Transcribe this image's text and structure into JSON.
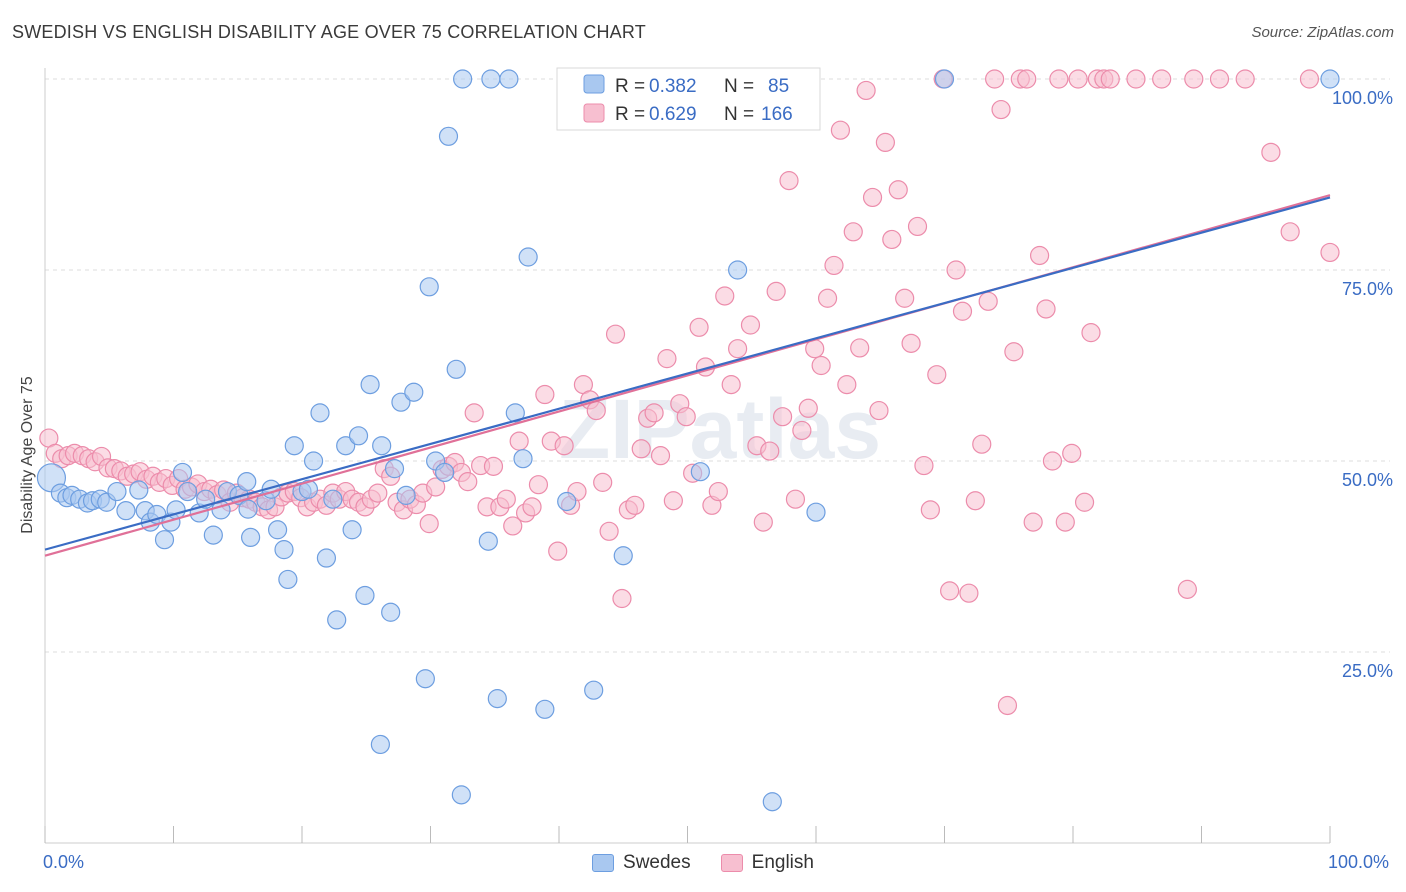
{
  "title": "SWEDISH VS ENGLISH DISABILITY AGE OVER 75 CORRELATION CHART",
  "source": "Source: ZipAtlas.com",
  "watermark": "ZIPatlas",
  "colors": {
    "swedes_fill": "#a9c8f0",
    "swedes_stroke": "#6d9ee0",
    "swedes_line": "#3a6cc4",
    "english_fill": "#f7bfd0",
    "english_stroke": "#ec8cab",
    "english_line": "#e07098",
    "axis_text": "#3a6cc4",
    "grid": "#dddddd"
  },
  "legend": {
    "rows": [
      {
        "r_label": "R =",
        "r_value": "0.382",
        "n_label": "N =",
        "n_value": "85"
      },
      {
        "r_label": "R =",
        "r_value": "0.629",
        "n_label": "N =",
        "n_value": "166"
      }
    ]
  },
  "bottom_legend": [
    "Swedes",
    "English"
  ],
  "chart_data": {
    "type": "scatter",
    "title": "SWEDISH VS ENGLISH DISABILITY AGE OVER 75 CORRELATION CHART",
    "xlabel": "",
    "ylabel": "Disability Age Over 75",
    "xlim": [
      0,
      100
    ],
    "ylim": [
      0,
      100
    ],
    "x_tick_labels": [
      "0.0%",
      "100.0%"
    ],
    "y_tick_labels": [
      "100.0%",
      "75.0%",
      "50.0%",
      "25.0%"
    ],
    "y_ticks": [
      100,
      75,
      50,
      25
    ],
    "grid": true,
    "legend_position": "top-center",
    "series": [
      {
        "name": "Swedes",
        "r": 0.382,
        "n": 85,
        "trend": [
          [
            0,
            38.4
          ],
          [
            100,
            84.5
          ]
        ],
        "points": [
          [
            0.5,
            47.8
          ],
          [
            1.2,
            45.8
          ],
          [
            1.7,
            45.2
          ],
          [
            2.1,
            45.5
          ],
          [
            2.7,
            45.0
          ],
          [
            3.3,
            44.5
          ],
          [
            3.7,
            44.8
          ],
          [
            4.3,
            45.0
          ],
          [
            4.8,
            44.6
          ],
          [
            5.6,
            46.0
          ],
          [
            6.3,
            43.5
          ],
          [
            7.3,
            46.2
          ],
          [
            7.8,
            43.5
          ],
          [
            8.2,
            42.0
          ],
          [
            8.7,
            43.0
          ],
          [
            9.3,
            39.7
          ],
          [
            9.8,
            42.0
          ],
          [
            10.2,
            43.6
          ],
          [
            10.7,
            48.5
          ],
          [
            11.1,
            46.0
          ],
          [
            12.0,
            43.2
          ],
          [
            12.5,
            45.0
          ],
          [
            13.1,
            40.3
          ],
          [
            13.7,
            43.6
          ],
          [
            14.2,
            46.0
          ],
          [
            15.1,
            45.5
          ],
          [
            15.7,
            47.3
          ],
          [
            15.8,
            43.7
          ],
          [
            16.0,
            40.0
          ],
          [
            17.2,
            44.8
          ],
          [
            17.6,
            46.3
          ],
          [
            18.1,
            41.0
          ],
          [
            18.6,
            38.4
          ],
          [
            18.9,
            34.5
          ],
          [
            19.4,
            52.0
          ],
          [
            20.0,
            46.0
          ],
          [
            20.5,
            46.3
          ],
          [
            20.9,
            50.0
          ],
          [
            21.4,
            56.3
          ],
          [
            21.9,
            37.3
          ],
          [
            22.4,
            45.0
          ],
          [
            22.7,
            29.2
          ],
          [
            23.4,
            52.0
          ],
          [
            23.9,
            41.0
          ],
          [
            24.4,
            53.3
          ],
          [
            24.9,
            32.4
          ],
          [
            25.3,
            60.0
          ],
          [
            26.1,
            12.9
          ],
          [
            26.2,
            52.0
          ],
          [
            26.9,
            30.2
          ],
          [
            27.2,
            49.0
          ],
          [
            27.7,
            57.7
          ],
          [
            28.1,
            45.5
          ],
          [
            28.7,
            59.0
          ],
          [
            29.6,
            21.5
          ],
          [
            29.9,
            72.8
          ],
          [
            30.4,
            50.0
          ],
          [
            31.1,
            48.5
          ],
          [
            31.4,
            92.5
          ],
          [
            32.0,
            62.0
          ],
          [
            32.4,
            6.3
          ],
          [
            32.5,
            100
          ],
          [
            34.5,
            39.5
          ],
          [
            34.7,
            100
          ],
          [
            35.2,
            18.9
          ],
          [
            36.1,
            100
          ],
          [
            36.6,
            56.3
          ],
          [
            37.2,
            50.3
          ],
          [
            37.6,
            76.7
          ],
          [
            38.9,
            17.5
          ],
          [
            40.6,
            44.7
          ],
          [
            42.7,
            20.0
          ],
          [
            45.0,
            37.6
          ],
          [
            51.0,
            48.6
          ],
          [
            53.5,
            100
          ],
          [
            53.9,
            75.0
          ],
          [
            56.6,
            5.4
          ],
          [
            60.0,
            43.3
          ],
          [
            70.0,
            100
          ],
          [
            100.0,
            100
          ]
        ]
      },
      {
        "name": "English",
        "r": 0.629,
        "n": 166,
        "trend": [
          [
            0,
            37.6
          ],
          [
            100,
            84.8
          ]
        ],
        "points": [
          [
            0.3,
            53.0
          ],
          [
            0.8,
            51.0
          ],
          [
            1.3,
            50.3
          ],
          [
            1.8,
            50.7
          ],
          [
            2.3,
            51.0
          ],
          [
            2.9,
            50.7
          ],
          [
            3.4,
            50.3
          ],
          [
            3.9,
            49.9
          ],
          [
            4.4,
            50.6
          ],
          [
            4.9,
            49.1
          ],
          [
            5.4,
            49.0
          ],
          [
            5.9,
            48.7
          ],
          [
            6.4,
            48.0
          ],
          [
            6.9,
            48.3
          ],
          [
            7.4,
            48.6
          ],
          [
            7.9,
            47.6
          ],
          [
            8.4,
            48.0
          ],
          [
            8.9,
            47.2
          ],
          [
            9.4,
            47.7
          ],
          [
            9.9,
            46.8
          ],
          [
            10.4,
            47.7
          ],
          [
            10.9,
            46.3
          ],
          [
            11.4,
            46.6
          ],
          [
            11.9,
            47.0
          ],
          [
            12.4,
            46.0
          ],
          [
            12.9,
            46.3
          ],
          [
            13.4,
            45.6
          ],
          [
            13.9,
            46.2
          ],
          [
            14.4,
            44.6
          ],
          [
            14.9,
            45.8
          ],
          [
            15.4,
            45.2
          ],
          [
            15.9,
            45.0
          ],
          [
            16.4,
            44.6
          ],
          [
            16.9,
            44.0
          ],
          [
            17.4,
            43.6
          ],
          [
            17.9,
            44.0
          ],
          [
            18.4,
            45.3
          ],
          [
            18.9,
            45.8
          ],
          [
            19.4,
            46.0
          ],
          [
            19.9,
            45.2
          ],
          [
            20.4,
            44.0
          ],
          [
            20.9,
            44.6
          ],
          [
            21.4,
            45.0
          ],
          [
            21.9,
            44.2
          ],
          [
            22.4,
            45.8
          ],
          [
            22.9,
            45.0
          ],
          [
            23.4,
            46.0
          ],
          [
            23.9,
            45.0
          ],
          [
            24.4,
            44.6
          ],
          [
            24.9,
            44.0
          ],
          [
            25.4,
            45.0
          ],
          [
            25.9,
            45.8
          ],
          [
            26.4,
            49.0
          ],
          [
            26.9,
            48.0
          ],
          [
            27.4,
            44.6
          ],
          [
            27.9,
            43.6
          ],
          [
            28.4,
            45.0
          ],
          [
            28.9,
            44.3
          ],
          [
            29.4,
            45.8
          ],
          [
            29.9,
            41.8
          ],
          [
            30.4,
            46.6
          ],
          [
            30.9,
            48.9
          ],
          [
            31.4,
            49.3
          ],
          [
            31.9,
            49.8
          ],
          [
            32.4,
            48.5
          ],
          [
            32.9,
            47.3
          ],
          [
            33.4,
            56.3
          ],
          [
            33.9,
            49.4
          ],
          [
            34.4,
            44.0
          ],
          [
            34.9,
            49.3
          ],
          [
            35.4,
            44.0
          ],
          [
            35.9,
            45.0
          ],
          [
            36.4,
            41.5
          ],
          [
            36.9,
            52.6
          ],
          [
            37.4,
            43.2
          ],
          [
            37.9,
            44.0
          ],
          [
            38.4,
            46.9
          ],
          [
            38.9,
            58.7
          ],
          [
            39.4,
            52.6
          ],
          [
            39.9,
            38.2
          ],
          [
            40.4,
            52.0
          ],
          [
            40.9,
            44.2
          ],
          [
            41.4,
            46.0
          ],
          [
            41.9,
            60.0
          ],
          [
            42.4,
            58.0
          ],
          [
            42.9,
            56.6
          ],
          [
            43.4,
            47.2
          ],
          [
            43.9,
            40.8
          ],
          [
            44.4,
            66.6
          ],
          [
            44.9,
            32.0
          ],
          [
            45.4,
            43.6
          ],
          [
            45.9,
            44.2
          ],
          [
            46.4,
            51.6
          ],
          [
            46.9,
            55.6
          ],
          [
            47.4,
            56.3
          ],
          [
            47.9,
            50.7
          ],
          [
            48.4,
            63.4
          ],
          [
            48.9,
            44.8
          ],
          [
            49.4,
            57.5
          ],
          [
            49.9,
            55.8
          ],
          [
            50.4,
            48.4
          ],
          [
            50.9,
            67.5
          ],
          [
            51.4,
            62.3
          ],
          [
            51.9,
            44.2
          ],
          [
            52.4,
            46.0
          ],
          [
            52.9,
            71.6
          ],
          [
            53.4,
            60.0
          ],
          [
            53.9,
            64.7
          ],
          [
            54.4,
            100
          ],
          [
            54.9,
            67.8
          ],
          [
            55.4,
            52.0
          ],
          [
            55.9,
            42.0
          ],
          [
            56.4,
            51.3
          ],
          [
            56.9,
            72.2
          ],
          [
            57.4,
            55.8
          ],
          [
            57.9,
            86.7
          ],
          [
            58.4,
            45.0
          ],
          [
            58.9,
            54.0
          ],
          [
            59.4,
            56.9
          ],
          [
            59.9,
            64.7
          ],
          [
            60.4,
            62.5
          ],
          [
            60.9,
            71.3
          ],
          [
            61.4,
            75.6
          ],
          [
            61.9,
            93.3
          ],
          [
            62.4,
            60.0
          ],
          [
            62.9,
            80.0
          ],
          [
            63.4,
            64.8
          ],
          [
            63.9,
            98.5
          ],
          [
            64.4,
            84.5
          ],
          [
            64.9,
            56.6
          ],
          [
            65.4,
            91.7
          ],
          [
            65.9,
            79.0
          ],
          [
            66.4,
            85.5
          ],
          [
            66.9,
            71.3
          ],
          [
            67.4,
            65.4
          ],
          [
            67.9,
            80.7
          ],
          [
            68.4,
            49.4
          ],
          [
            68.9,
            43.6
          ],
          [
            69.4,
            61.3
          ],
          [
            69.9,
            100
          ],
          [
            70.4,
            33.0
          ],
          [
            70.9,
            75.0
          ],
          [
            71.4,
            69.6
          ],
          [
            71.9,
            32.7
          ],
          [
            72.4,
            44.8
          ],
          [
            72.9,
            52.2
          ],
          [
            73.4,
            70.9
          ],
          [
            73.9,
            100
          ],
          [
            74.4,
            96.0
          ],
          [
            74.9,
            18.0
          ],
          [
            75.4,
            64.3
          ],
          [
            75.9,
            100
          ],
          [
            76.4,
            100
          ],
          [
            76.9,
            42.0
          ],
          [
            77.4,
            76.9
          ],
          [
            77.9,
            69.9
          ],
          [
            78.4,
            50.0
          ],
          [
            78.9,
            100
          ],
          [
            79.4,
            42.0
          ],
          [
            79.9,
            51.0
          ],
          [
            80.4,
            100
          ],
          [
            80.9,
            44.6
          ],
          [
            81.4,
            66.8
          ],
          [
            81.9,
            100
          ],
          [
            82.4,
            100
          ],
          [
            82.9,
            100
          ],
          [
            84.9,
            100
          ],
          [
            86.9,
            100
          ],
          [
            88.9,
            33.2
          ],
          [
            89.4,
            100
          ],
          [
            91.4,
            100
          ],
          [
            93.4,
            100
          ],
          [
            95.4,
            90.4
          ],
          [
            96.9,
            80.0
          ],
          [
            98.4,
            100
          ],
          [
            100.0,
            77.3
          ]
        ]
      }
    ]
  }
}
